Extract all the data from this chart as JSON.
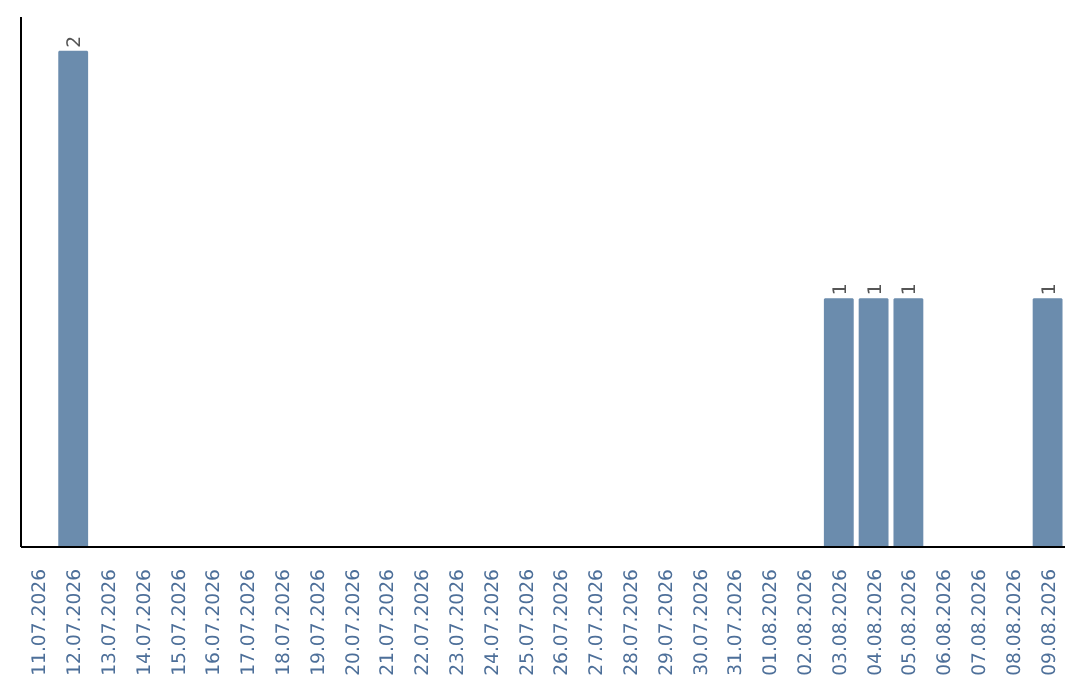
{
  "chart_data": {
    "type": "bar",
    "categories": [
      "11.07.2026",
      "12.07.2026",
      "13.07.2026",
      "14.07.2026",
      "15.07.2026",
      "16.07.2026",
      "17.07.2026",
      "18.07.2026",
      "19.07.2026",
      "20.07.2026",
      "21.07.2026",
      "22.07.2026",
      "23.07.2026",
      "24.07.2026",
      "25.07.2026",
      "26.07.2026",
      "27.07.2026",
      "28.07.2026",
      "29.07.2026",
      "30.07.2026",
      "31.07.2026",
      "01.08.2026",
      "02.08.2026",
      "03.08.2026",
      "04.08.2026",
      "05.08.2026",
      "06.08.2026",
      "07.08.2026",
      "08.08.2026",
      "09.08.2026"
    ],
    "values": [
      0,
      2,
      0,
      0,
      0,
      0,
      0,
      0,
      0,
      0,
      0,
      0,
      0,
      0,
      0,
      0,
      0,
      0,
      0,
      0,
      0,
      0,
      0,
      1,
      1,
      1,
      0,
      0,
      0,
      1
    ],
    "value_labels": [
      null,
      "2",
      null,
      null,
      null,
      null,
      null,
      null,
      null,
      null,
      null,
      null,
      null,
      null,
      null,
      null,
      null,
      null,
      null,
      null,
      null,
      null,
      null,
      "1",
      "1",
      "1",
      null,
      null,
      null,
      "1"
    ],
    "color": "#6b8cad",
    "grid": false
  }
}
